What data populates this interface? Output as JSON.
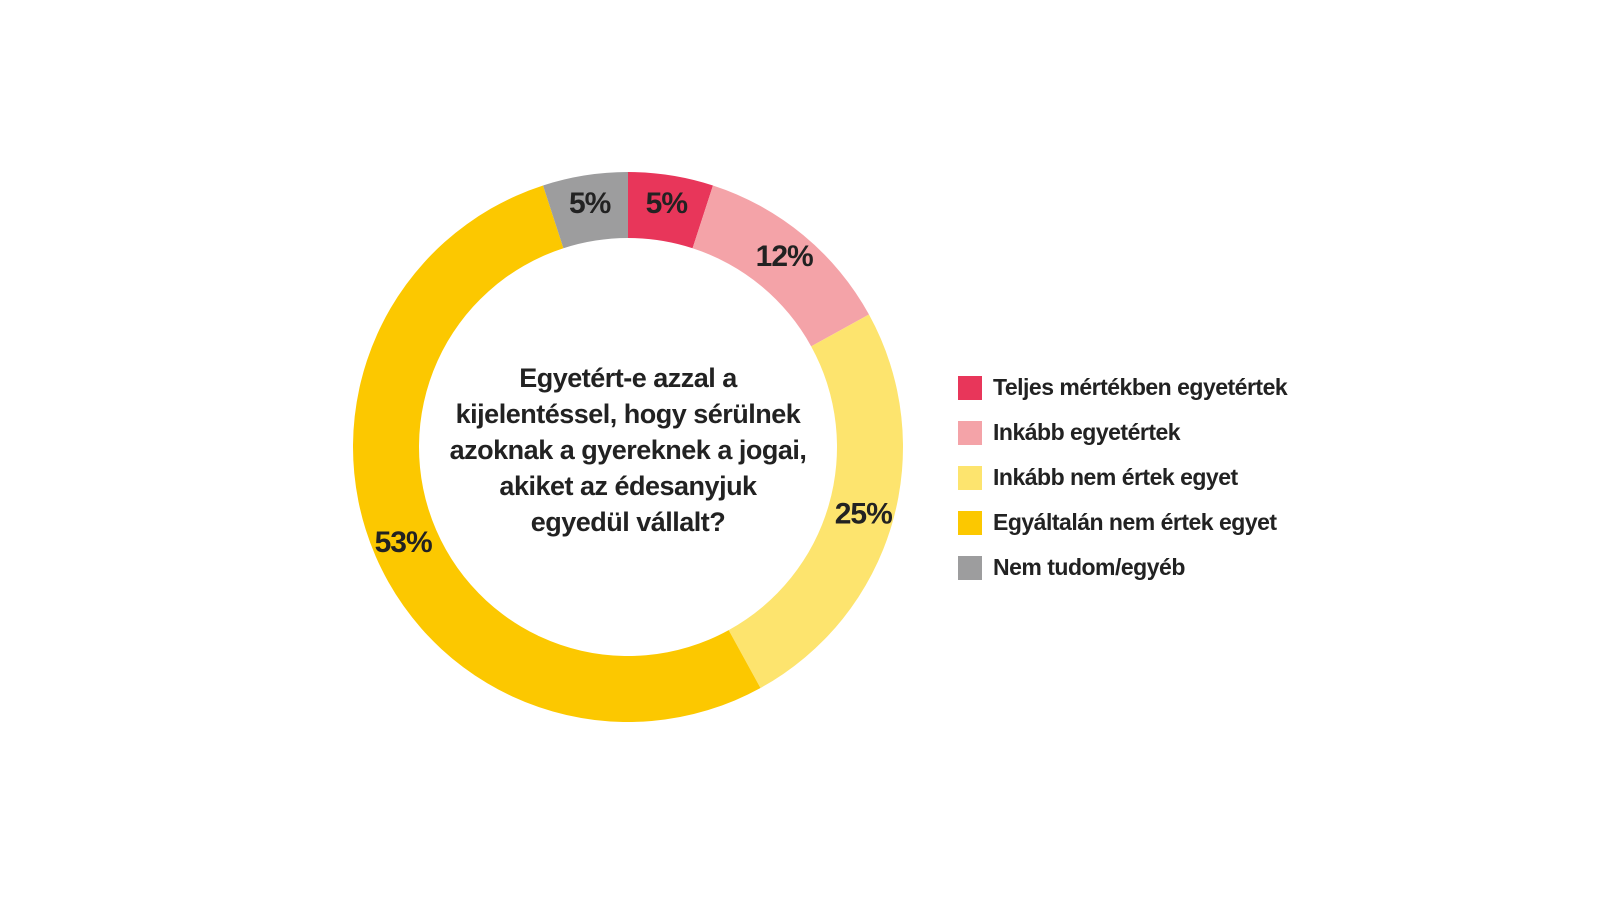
{
  "chart_data": {
    "type": "donut",
    "title": "Egyetért-e azzal a kijelentéssel, hogy sérülnek azoknak a gyereknek a jogai, akiket az édesanyjuk egyedül vállalt?",
    "categories": [
      "Teljes mértékben egyetértek",
      "Inkább egyetértek",
      "Inkább nem értek egyet",
      "Egyáltalán nem értek egyet",
      "Nem tudom/egyéb"
    ],
    "values": [
      5,
      12,
      25,
      53,
      5
    ],
    "value_labels": [
      "5%",
      "12%",
      "25%",
      "53%",
      "5%"
    ],
    "colors": [
      "#e8365a",
      "#f4a3a8",
      "#fde46e",
      "#fcc800",
      "#9d9d9e"
    ],
    "legend": "right"
  }
}
